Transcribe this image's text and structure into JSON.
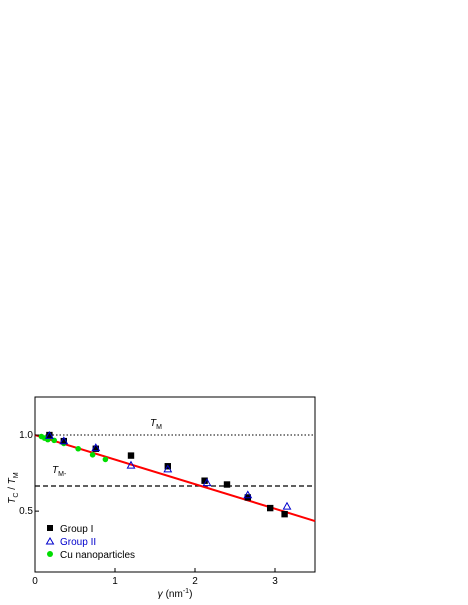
{
  "chart_data": {
    "type": "scatter",
    "title": "",
    "xlim": [
      0,
      3.5
    ],
    "ylim": [
      0.1,
      1.25
    ],
    "x_ticks": [
      0,
      1,
      2,
      3
    ],
    "x_tick_labels": [
      "0",
      "1",
      "2",
      "3"
    ],
    "y_ticks": [
      0.5,
      1.0
    ],
    "y_tick_labels": [
      "0.5",
      "1.0"
    ],
    "xlabel_symbol": "γ",
    "xlabel_unit": "(nm",
    "xlabel_exponent": "-1",
    "xlabel_close": ")",
    "ylabel_parts": [
      "T",
      "C",
      " / ",
      "T",
      "M"
    ],
    "grid": false,
    "legend_position": "bottom-left",
    "series": [
      {
        "name": "Group I",
        "marker": "filled-square",
        "color": "#000000",
        "points": [
          [
            0.18,
            1.0
          ],
          [
            0.36,
            0.96
          ],
          [
            0.76,
            0.91
          ],
          [
            1.2,
            0.865
          ],
          [
            1.66,
            0.795
          ],
          [
            2.12,
            0.7
          ],
          [
            2.4,
            0.675
          ],
          [
            2.66,
            0.59
          ],
          [
            2.94,
            0.52
          ],
          [
            3.12,
            0.48
          ]
        ]
      },
      {
        "name": "Group II",
        "marker": "open-triangle",
        "color": "#0000cc",
        "points": [
          [
            0.18,
            0.995
          ],
          [
            0.36,
            0.96
          ],
          [
            0.76,
            0.915
          ],
          [
            1.2,
            0.8
          ],
          [
            1.66,
            0.775
          ],
          [
            2.15,
            0.685
          ],
          [
            2.66,
            0.605
          ],
          [
            3.15,
            0.53
          ]
        ]
      },
      {
        "name": "Cu nanoparticles",
        "marker": "filled-circle",
        "color": "#00dd00",
        "points": [
          [
            0.08,
            0.99
          ],
          [
            0.12,
            0.98
          ],
          [
            0.16,
            0.97
          ],
          [
            0.24,
            0.965
          ],
          [
            0.36,
            0.945
          ],
          [
            0.54,
            0.91
          ],
          [
            0.72,
            0.87
          ],
          [
            0.88,
            0.84
          ]
        ]
      }
    ],
    "fit_line": {
      "color": "#ff0000",
      "x": [
        0,
        3.5
      ],
      "y": [
        1.0,
        0.435
      ]
    },
    "reference_lines": [
      {
        "label": "T",
        "sub": "M",
        "y": 1.0,
        "style": "dotted"
      },
      {
        "label": "T",
        "sub": "M-",
        "y": 0.665,
        "style": "dashed"
      }
    ]
  }
}
